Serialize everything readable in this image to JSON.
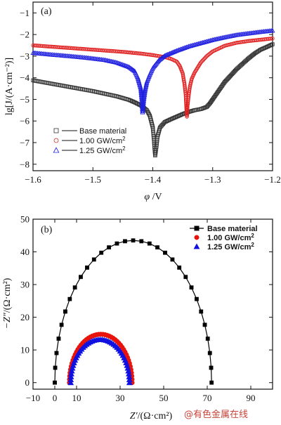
{
  "watermark": "@有色金属在线",
  "chart_data": [
    {
      "type": "line",
      "panel_label": "(a)",
      "xlabel_parts": {
        "symbol": "φ",
        "unit": " /V"
      },
      "ylabel": "lg[J/(A·cm⁻²)]",
      "xlim": [
        -1.6,
        -1.2
      ],
      "ylim": [
        -8.3,
        -0.5
      ],
      "x_ticks": [
        -1.6,
        -1.5,
        -1.4,
        -1.3,
        -1.2
      ],
      "x_tick_labels": [
        "−1.6",
        "−1.5",
        "−1.4",
        "−1.3",
        "−1.2"
      ],
      "y_ticks": [
        -8,
        -7,
        -6,
        -5,
        -4,
        -3,
        -2,
        -1
      ],
      "y_tick_labels": [
        "−8",
        "−7",
        "−6",
        "−5",
        "−4",
        "−3",
        "−2",
        "−1"
      ],
      "legend_position": "bottom-left",
      "series": [
        {
          "name": "Base material",
          "marker": "square",
          "color": "#333333",
          "points": [
            [
              -1.6,
              -4.12
            ],
            [
              -1.58,
              -4.22
            ],
            [
              -1.56,
              -4.32
            ],
            [
              -1.54,
              -4.42
            ],
            [
              -1.52,
              -4.52
            ],
            [
              -1.5,
              -4.62
            ],
            [
              -1.48,
              -4.74
            ],
            [
              -1.46,
              -4.86
            ],
            [
              -1.44,
              -5.02
            ],
            [
              -1.43,
              -5.14
            ],
            [
              -1.42,
              -5.28
            ],
            [
              -1.41,
              -5.5
            ],
            [
              -1.405,
              -5.75
            ],
            [
              -1.4,
              -6.3
            ],
            [
              -1.398,
              -6.9
            ],
            [
              -1.397,
              -7.3
            ],
            [
              -1.396,
              -7.6
            ],
            [
              -1.394,
              -7.2
            ],
            [
              -1.392,
              -6.7
            ],
            [
              -1.388,
              -6.3
            ],
            [
              -1.38,
              -6.05
            ],
            [
              -1.37,
              -5.92
            ],
            [
              -1.36,
              -5.8
            ],
            [
              -1.35,
              -5.68
            ],
            [
              -1.34,
              -5.58
            ],
            [
              -1.33,
              -5.5
            ],
            [
              -1.32,
              -5.45
            ],
            [
              -1.31,
              -5.35
            ],
            [
              -1.305,
              -5.2
            ],
            [
              -1.3,
              -5.0
            ],
            [
              -1.29,
              -4.6
            ],
            [
              -1.28,
              -4.2
            ],
            [
              -1.27,
              -3.9
            ],
            [
              -1.26,
              -3.6
            ],
            [
              -1.25,
              -3.35
            ],
            [
              -1.24,
              -3.1
            ],
            [
              -1.23,
              -2.88
            ],
            [
              -1.22,
              -2.7
            ],
            [
              -1.21,
              -2.58
            ],
            [
              -1.2,
              -2.45
            ]
          ]
        },
        {
          "name": "1.00 GW/cm²",
          "marker": "circle",
          "color": "#e02020",
          "points": [
            [
              -1.6,
              -2.5
            ],
            [
              -1.57,
              -2.56
            ],
            [
              -1.54,
              -2.62
            ],
            [
              -1.51,
              -2.68
            ],
            [
              -1.48,
              -2.74
            ],
            [
              -1.45,
              -2.8
            ],
            [
              -1.42,
              -2.88
            ],
            [
              -1.4,
              -2.95
            ],
            [
              -1.38,
              -3.04
            ],
            [
              -1.37,
              -3.12
            ],
            [
              -1.36,
              -3.25
            ],
            [
              -1.355,
              -3.45
            ],
            [
              -1.35,
              -3.8
            ],
            [
              -1.347,
              -4.3
            ],
            [
              -1.345,
              -4.8
            ],
            [
              -1.344,
              -5.4
            ],
            [
              -1.343,
              -5.8
            ],
            [
              -1.342,
              -5.3
            ],
            [
              -1.34,
              -4.8
            ],
            [
              -1.338,
              -4.4
            ],
            [
              -1.335,
              -4.05
            ],
            [
              -1.33,
              -3.75
            ],
            [
              -1.32,
              -3.3
            ],
            [
              -1.31,
              -3.0
            ],
            [
              -1.3,
              -2.78
            ],
            [
              -1.28,
              -2.52
            ],
            [
              -1.26,
              -2.38
            ],
            [
              -1.24,
              -2.3
            ],
            [
              -1.22,
              -2.24
            ],
            [
              -1.2,
              -2.18
            ]
          ]
        },
        {
          "name": "1.25 GW/cm²",
          "marker": "triangle",
          "color": "#2020e0",
          "points": [
            [
              -1.6,
              -2.85
            ],
            [
              -1.57,
              -2.93
            ],
            [
              -1.54,
              -3.0
            ],
            [
              -1.51,
              -3.08
            ],
            [
              -1.48,
              -3.18
            ],
            [
              -1.46,
              -3.3
            ],
            [
              -1.44,
              -3.5
            ],
            [
              -1.43,
              -3.7
            ],
            [
              -1.425,
              -4.0
            ],
            [
              -1.42,
              -4.5
            ],
            [
              -1.418,
              -5.1
            ],
            [
              -1.417,
              -5.6
            ],
            [
              -1.415,
              -5.0
            ],
            [
              -1.413,
              -4.6
            ],
            [
              -1.41,
              -4.2
            ],
            [
              -1.405,
              -3.85
            ],
            [
              -1.4,
              -3.55
            ],
            [
              -1.39,
              -3.2
            ],
            [
              -1.38,
              -2.98
            ],
            [
              -1.36,
              -2.75
            ],
            [
              -1.34,
              -2.55
            ],
            [
              -1.32,
              -2.4
            ],
            [
              -1.3,
              -2.25
            ],
            [
              -1.28,
              -2.13
            ],
            [
              -1.26,
              -2.02
            ],
            [
              -1.24,
              -1.95
            ],
            [
              -1.22,
              -1.88
            ],
            [
              -1.2,
              -1.82
            ]
          ]
        }
      ]
    },
    {
      "type": "scatter",
      "panel_label": "(b)",
      "xlabel_parts": {
        "symbol": "Z′",
        "unit": "/(Ω·cm²)"
      },
      "ylabel_parts": {
        "symbol": "−Z″",
        "unit": "/(Ω·cm²)"
      },
      "xlim": [
        -10,
        100
      ],
      "ylim": [
        -2,
        50
      ],
      "x_ticks": [
        -10,
        0,
        10,
        30,
        50,
        70,
        90
      ],
      "x_tick_labels": [
        "−10",
        "0",
        "10",
        "30",
        "50",
        "70",
        "90"
      ],
      "y_ticks": [
        0,
        10,
        20,
        30,
        40,
        50
      ],
      "y_tick_labels": [
        "0",
        "10",
        "20",
        "30",
        "40",
        "50"
      ],
      "legend_position": "top-right",
      "series": [
        {
          "name": "Base material",
          "marker": "square",
          "color": "#000000",
          "center": 36,
          "radius": 36,
          "peak": 43.5
        },
        {
          "name": "1.00 GW/cm²",
          "marker": "circle",
          "color": "#e8140c",
          "center": 21.1,
          "radius": 14.4,
          "peak": 14.8
        },
        {
          "name": "1.25 GW/cm²",
          "marker": "triangle",
          "color": "#1010e0",
          "center": 20.8,
          "radius": 13.5,
          "peak": 13.2
        }
      ]
    }
  ]
}
